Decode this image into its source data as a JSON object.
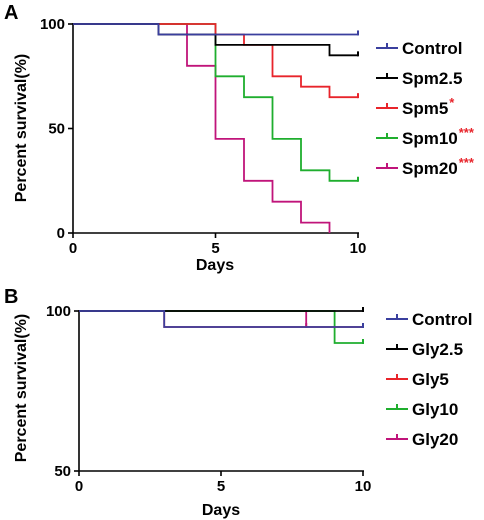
{
  "chart_data": [
    {
      "type": "line",
      "panel_label": "A",
      "xlabel": "Days",
      "ylabel": "Percent survival(%)",
      "xlim": [
        0,
        10
      ],
      "ylim": [
        0,
        100
      ],
      "xticks": [
        "0",
        "5",
        "10"
      ],
      "yticks": [
        "0",
        "50",
        "100"
      ],
      "legend_position": "right",
      "series": [
        {
          "name": "Control",
          "color": "#3a3f9e",
          "sig": "",
          "points": [
            [
              0,
              100
            ],
            [
              3,
              100
            ],
            [
              3,
              95
            ],
            [
              10,
              95
            ]
          ]
        },
        {
          "name": "Spm2.5",
          "color": "#000000",
          "sig": "",
          "points": [
            [
              0,
              100
            ],
            [
              3,
              100
            ],
            [
              3,
              95
            ],
            [
              5,
              95
            ],
            [
              5,
              90
            ],
            [
              9,
              90
            ],
            [
              9,
              85
            ],
            [
              10,
              85
            ]
          ]
        },
        {
          "name": "Spm5",
          "color": "#e8242b",
          "sig": "*",
          "points": [
            [
              0,
              100
            ],
            [
              5,
              100
            ],
            [
              5,
              95
            ],
            [
              6,
              95
            ],
            [
              6,
              90
            ],
            [
              7,
              90
            ],
            [
              7,
              75
            ],
            [
              8,
              75
            ],
            [
              8,
              70
            ],
            [
              9,
              70
            ],
            [
              9,
              65
            ],
            [
              10,
              65
            ]
          ]
        },
        {
          "name": "Spm10",
          "color": "#1fae2e",
          "sig": "***",
          "points": [
            [
              0,
              100
            ],
            [
              5,
              100
            ],
            [
              5,
              75
            ],
            [
              6,
              75
            ],
            [
              6,
              65
            ],
            [
              7,
              65
            ],
            [
              7,
              45
            ],
            [
              8,
              45
            ],
            [
              8,
              30
            ],
            [
              9,
              30
            ],
            [
              9,
              25
            ],
            [
              10,
              25
            ]
          ]
        },
        {
          "name": "Spm20",
          "color": "#c0147a",
          "sig": "***",
          "points": [
            [
              0,
              100
            ],
            [
              4,
              100
            ],
            [
              4,
              80
            ],
            [
              5,
              80
            ],
            [
              5,
              45
            ],
            [
              6,
              45
            ],
            [
              6,
              25
            ],
            [
              7,
              25
            ],
            [
              7,
              15
            ],
            [
              8,
              15
            ],
            [
              8,
              5
            ],
            [
              9,
              5
            ],
            [
              9,
              0
            ]
          ]
        }
      ]
    },
    {
      "type": "line",
      "panel_label": "B",
      "xlabel": "Days",
      "ylabel": "Percent survival(%)",
      "xlim": [
        0,
        10
      ],
      "ylim": [
        50,
        100
      ],
      "xticks": [
        "0",
        "5",
        "10"
      ],
      "yticks": [
        "50",
        "100"
      ],
      "legend_position": "right",
      "series": [
        {
          "name": "Control",
          "color": "#3a3f9e",
          "sig": "",
          "points": [
            [
              0,
              100
            ],
            [
              3,
              100
            ],
            [
              3,
              95
            ],
            [
              10,
              95
            ]
          ]
        },
        {
          "name": "Gly2.5",
          "color": "#000000",
          "sig": "",
          "points": [
            [
              0,
              100
            ],
            [
              10,
              100
            ]
          ]
        },
        {
          "name": "Gly5",
          "color": "#e8242b",
          "sig": "",
          "points": [
            [
              0,
              100
            ],
            [
              3,
              100
            ],
            [
              3,
              95
            ],
            [
              10,
              95
            ]
          ]
        },
        {
          "name": "Gly10",
          "color": "#1fae2e",
          "sig": "",
          "points": [
            [
              0,
              100
            ],
            [
              9,
              100
            ],
            [
              9,
              90
            ],
            [
              10,
              90
            ]
          ]
        },
        {
          "name": "Gly20",
          "color": "#c0147a",
          "sig": "",
          "points": [
            [
              3,
              100
            ],
            [
              8,
              100
            ],
            [
              8,
              95
            ]
          ]
        }
      ]
    }
  ]
}
